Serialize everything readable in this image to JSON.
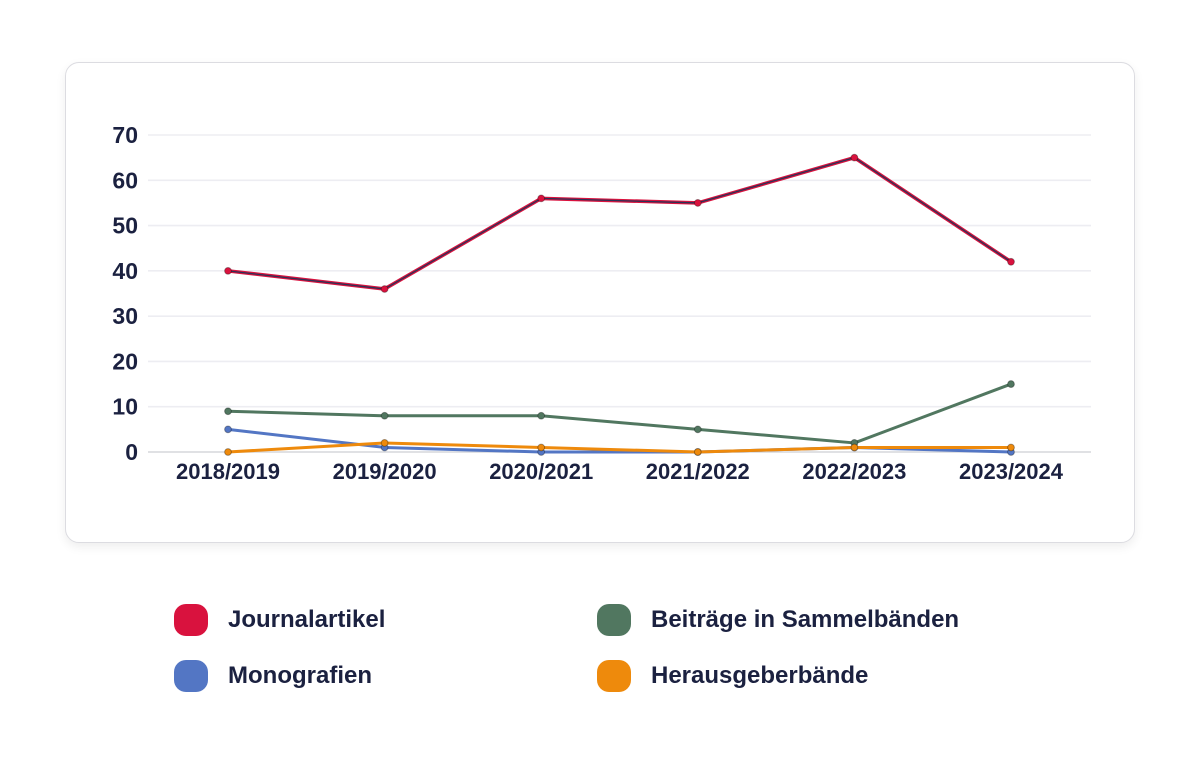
{
  "text_color": "#1b2140",
  "gridline_color": "#ededf2",
  "zeroline_color": "#d6d7dc",
  "card_background": "#ffffff",
  "chart_data": {
    "type": "line",
    "title": "",
    "xlabel": "",
    "ylabel": "",
    "categories": [
      "2018/2019",
      "2019/2020",
      "2020/2021",
      "2021/2022",
      "2022/2023",
      "2023/2024"
    ],
    "series": [
      {
        "name": "Journalartikel",
        "color": "#d9123e",
        "core_color": "#2b3357",
        "values": [
          40,
          36,
          56,
          55,
          65,
          42
        ]
      },
      {
        "name": "Monografien",
        "color": "#5376c4",
        "values": [
          5,
          1,
          0,
          0,
          1,
          0
        ]
      },
      {
        "name": "Beiträge in Sammelbänden",
        "color": "#517760",
        "values": [
          9,
          8,
          8,
          5,
          2,
          15
        ]
      },
      {
        "name": "Herausgeberbände",
        "color": "#ee8a0c",
        "values": [
          0,
          2,
          1,
          0,
          1,
          1
        ]
      }
    ],
    "ylim": [
      0,
      70
    ],
    "yticks": [
      0,
      10,
      20,
      30,
      40,
      50,
      60,
      70
    ],
    "grid": true,
    "legend_position": "bottom",
    "legend_columns": 2
  }
}
